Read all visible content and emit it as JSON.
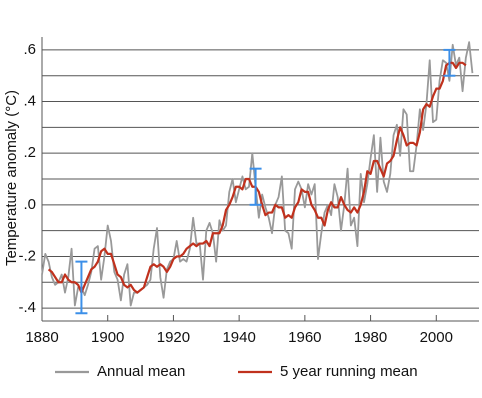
{
  "chart_data": {
    "type": "line",
    "y_label": "Temperature anomaly (°C)",
    "x": [
      1880,
      1881,
      1882,
      1883,
      1884,
      1885,
      1886,
      1887,
      1888,
      1889,
      1890,
      1891,
      1892,
      1893,
      1894,
      1895,
      1896,
      1897,
      1898,
      1899,
      1900,
      1901,
      1902,
      1903,
      1904,
      1905,
      1906,
      1907,
      1908,
      1909,
      1910,
      1911,
      1912,
      1913,
      1914,
      1915,
      1916,
      1917,
      1918,
      1919,
      1920,
      1921,
      1922,
      1923,
      1924,
      1925,
      1926,
      1927,
      1928,
      1929,
      1930,
      1931,
      1932,
      1933,
      1934,
      1935,
      1936,
      1937,
      1938,
      1939,
      1940,
      1941,
      1942,
      1943,
      1944,
      1945,
      1946,
      1947,
      1948,
      1949,
      1950,
      1951,
      1952,
      1953,
      1954,
      1955,
      1956,
      1957,
      1958,
      1959,
      1960,
      1961,
      1962,
      1963,
      1964,
      1965,
      1966,
      1967,
      1968,
      1969,
      1970,
      1971,
      1972,
      1973,
      1974,
      1975,
      1976,
      1977,
      1978,
      1979,
      1980,
      1981,
      1982,
      1983,
      1984,
      1985,
      1986,
      1987,
      1988,
      1989,
      1990,
      1991,
      1992,
      1993,
      1994,
      1995,
      1996,
      1997,
      1998,
      1999,
      2000,
      2001,
      2002,
      2003,
      2004,
      2005,
      2006,
      2007,
      2008,
      2009,
      2010,
      2011
    ],
    "series": [
      {
        "name": "Annual mean",
        "color": "#999999",
        "values": [
          -0.27,
          -0.19,
          -0.22,
          -0.28,
          -0.31,
          -0.3,
          -0.27,
          -0.34,
          -0.28,
          -0.17,
          -0.39,
          -0.32,
          -0.32,
          -0.35,
          -0.31,
          -0.26,
          -0.17,
          -0.16,
          -0.29,
          -0.2,
          -0.08,
          -0.14,
          -0.26,
          -0.29,
          -0.37,
          -0.27,
          -0.23,
          -0.39,
          -0.34,
          -0.34,
          -0.33,
          -0.32,
          -0.31,
          -0.29,
          -0.17,
          -0.09,
          -0.28,
          -0.36,
          -0.25,
          -0.22,
          -0.21,
          -0.14,
          -0.22,
          -0.21,
          -0.22,
          -0.17,
          -0.05,
          -0.15,
          -0.15,
          -0.29,
          -0.1,
          -0.07,
          -0.11,
          -0.22,
          -0.06,
          -0.1,
          -0.08,
          0.05,
          0.1,
          0.01,
          0.06,
          0.11,
          0.06,
          0.07,
          0.2,
          0.07,
          -0.05,
          0.04,
          -0.01,
          -0.05,
          -0.11,
          0.0,
          0.03,
          0.11,
          -0.1,
          -0.11,
          -0.17,
          0.06,
          0.09,
          0.06,
          -0.01,
          0.08,
          0.04,
          0.08,
          -0.21,
          -0.11,
          -0.03,
          0.0,
          -0.04,
          0.08,
          0.03,
          -0.1,
          0.0,
          0.14,
          -0.08,
          -0.05,
          -0.16,
          0.12,
          0.01,
          0.08,
          0.18,
          0.27,
          0.05,
          0.26,
          0.09,
          0.05,
          0.12,
          0.27,
          0.31,
          0.19,
          0.37,
          0.35,
          0.13,
          0.13,
          0.23,
          0.37,
          0.29,
          0.39,
          0.56,
          0.32,
          0.33,
          0.48,
          0.56,
          0.55,
          0.48,
          0.62,
          0.54,
          0.57,
          0.44,
          0.57,
          0.63,
          0.51
        ]
      },
      {
        "name": "5 year running mean",
        "color": "#c0311d",
        "values": [
          null,
          null,
          -0.25,
          -0.26,
          -0.28,
          -0.3,
          -0.3,
          -0.27,
          -0.29,
          -0.3,
          -0.3,
          -0.31,
          -0.34,
          -0.31,
          -0.28,
          -0.25,
          -0.24,
          -0.22,
          -0.18,
          -0.17,
          -0.19,
          -0.19,
          -0.23,
          -0.27,
          -0.28,
          -0.31,
          -0.32,
          -0.31,
          -0.33,
          -0.34,
          -0.33,
          -0.32,
          -0.28,
          -0.24,
          -0.23,
          -0.24,
          -0.23,
          -0.24,
          -0.26,
          -0.24,
          -0.21,
          -0.2,
          -0.2,
          -0.19,
          -0.17,
          -0.16,
          -0.15,
          -0.16,
          -0.15,
          -0.15,
          -0.14,
          -0.16,
          -0.11,
          -0.11,
          -0.11,
          -0.08,
          -0.02,
          0.0,
          0.03,
          0.07,
          0.07,
          0.06,
          0.1,
          0.1,
          0.07,
          0.07,
          0.05,
          0.0,
          -0.04,
          -0.03,
          -0.03,
          0.0,
          -0.01,
          -0.01,
          -0.05,
          -0.04,
          -0.05,
          -0.01,
          0.01,
          0.06,
          0.05,
          0.05,
          0.0,
          -0.02,
          -0.05,
          -0.05,
          -0.08,
          -0.02,
          0.01,
          -0.01,
          -0.01,
          0.03,
          0.0,
          -0.02,
          -0.03,
          -0.01,
          -0.03,
          0.0,
          0.05,
          0.13,
          0.12,
          0.17,
          0.17,
          0.14,
          0.11,
          0.16,
          0.17,
          0.19,
          0.25,
          0.3,
          0.27,
          0.23,
          0.24,
          0.24,
          0.23,
          0.28,
          0.37,
          0.39,
          0.38,
          0.42,
          0.45,
          0.45,
          0.48,
          0.54,
          0.55,
          0.55,
          0.53,
          0.55,
          0.55,
          0.54,
          null,
          null
        ]
      }
    ],
    "error_bars": {
      "color": "#3b8fe8",
      "x": [
        1892,
        1945,
        2004
      ],
      "values": [
        -0.32,
        0.07,
        0.55
      ],
      "errors": [
        0.1,
        0.07,
        0.05
      ]
    },
    "xlim": [
      1880,
      2013
    ],
    "xticks": [
      1880,
      1900,
      1920,
      1940,
      1960,
      1980,
      2000
    ],
    "ylim": [
      -0.45,
      0.65
    ],
    "yticks": [
      {
        "value": -0.4,
        "label": "-.4"
      },
      {
        "value": -0.2,
        "label": "-.2"
      },
      {
        "value": 0,
        "label": ".0"
      },
      {
        "value": 0.2,
        "label": ".2"
      },
      {
        "value": 0.4,
        "label": ".4"
      },
      {
        "value": 0.6,
        "label": ".6"
      }
    ],
    "minor_yticks": [
      -0.3,
      -0.1,
      0.1,
      0.3,
      0.5
    ],
    "grid": true,
    "legend": "bottom"
  }
}
